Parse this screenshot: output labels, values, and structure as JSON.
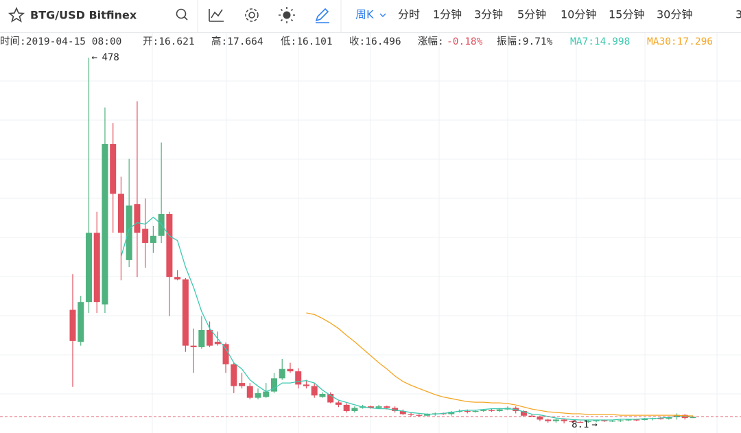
{
  "toolbar": {
    "symbol": "BTG/USD Bitfinex",
    "active_period": "周K",
    "periods": [
      "分时",
      "1分钟",
      "3分钟",
      "5分钟",
      "10分钟",
      "15分钟",
      "30分钟",
      "3"
    ]
  },
  "info": {
    "time": "时间:2019-04-15 08:00",
    "open": "开:16.621",
    "high": "高:17.664",
    "low": "低:16.101",
    "close": "收:16.496",
    "change_label": "涨幅:",
    "change": "-0.18%",
    "amplitude": "振幅:9.71%",
    "ma7": "MA7:14.998",
    "ma30": "MA30:17.296"
  },
  "chart_data": {
    "type": "candlestick",
    "up_color": "#4fb27f",
    "down_color": "#e0505f",
    "open": [
      154,
      113,
      164,
      253,
      161,
      367,
      303,
      218,
      290,
      258,
      240,
      249,
      277,
      196,
      193,
      108,
      106,
      128,
      113,
      110,
      84,
      60,
      56,
      41,
      42,
      49,
      66,
      78,
      75,
      58,
      56,
      42,
      46,
      35,
      32,
      24,
      28,
      30,
      28,
      30,
      28,
      24,
      20,
      19,
      18,
      20,
      21,
      20,
      23,
      24,
      23,
      24,
      25,
      24,
      26,
      28,
      24,
      18,
      17,
      13,
      11,
      13,
      11,
      10,
      10,
      11,
      12,
      11,
      11,
      12,
      13,
      12.5,
      14,
      14.5,
      14,
      16,
      19,
      15
    ],
    "high": [
      200,
      172,
      478,
      280,
      414,
      394,
      325,
      348,
      422,
      297,
      262,
      369,
      280,
      205,
      195,
      130,
      146,
      139,
      126,
      112,
      86,
      73,
      60,
      53,
      60,
      73,
      91,
      86,
      79,
      64,
      60,
      48,
      48,
      37,
      34,
      30,
      32,
      31,
      32,
      31,
      30,
      26,
      22,
      20,
      21,
      22,
      22,
      24,
      26,
      26,
      25,
      26,
      27,
      28,
      30,
      30,
      25,
      20,
      18,
      14,
      14,
      14,
      12,
      11,
      12,
      12.5,
      13,
      12,
      13,
      14,
      14,
      15,
      15.5,
      16,
      17,
      21,
      20,
      17
    ],
    "low": [
      55,
      108,
      150,
      150,
      150,
      253,
      192,
      209,
      196,
      208,
      227,
      240,
      146,
      192,
      100,
      73,
      104,
      106,
      108,
      73,
      47,
      53,
      39,
      39,
      41,
      47,
      64,
      73,
      53,
      53,
      41,
      41,
      34,
      29,
      22,
      22,
      27,
      27,
      27,
      26,
      22,
      19,
      17,
      17,
      17,
      18,
      19,
      18,
      22,
      21,
      22,
      23,
      23,
      23,
      25,
      21,
      16,
      16,
      11,
      9,
      9,
      8.1,
      9,
      9,
      9,
      9.5,
      10,
      10,
      10,
      11,
      11,
      12,
      12,
      13,
      13,
      13,
      13,
      15
    ],
    "close": [
      114,
      164,
      253,
      164,
      367,
      303,
      253,
      288,
      253,
      240,
      249,
      277,
      196,
      193,
      108,
      106,
      128,
      108,
      110,
      84,
      56,
      56,
      41,
      47,
      49,
      66,
      78,
      75,
      58,
      56,
      44,
      46,
      35,
      32,
      24,
      28,
      30,
      28,
      30,
      28,
      24,
      20,
      19,
      18,
      20,
      21,
      20,
      23,
      24,
      23,
      24,
      25,
      24,
      26,
      28,
      24,
      18,
      17,
      13,
      11,
      13,
      11,
      10,
      9.5,
      11,
      12,
      11,
      11.5,
      12,
      13,
      12.5,
      14,
      14.5,
      14,
      16,
      19,
      15,
      16.5
    ],
    "series": [
      {
        "color": "#3cc9b0",
        "values": [
          null,
          null,
          null,
          null,
          null,
          null,
          222,
          258,
          266,
          264,
          273,
          264,
          249,
          243,
          209,
          183,
          152,
          130,
          117,
          104,
          86,
          78,
          64,
          56,
          49,
          53,
          60,
          60,
          62,
          63,
          60,
          51,
          44,
          38,
          35,
          32,
          29,
          28,
          27,
          27,
          25,
          24,
          22,
          21,
          20,
          20,
          21,
          22,
          24,
          25,
          25,
          26,
          27,
          27,
          27,
          26,
          23,
          20,
          19,
          17,
          15,
          14,
          13,
          12.5,
          12.5,
          12.5,
          12.5,
          12.5,
          13.4,
          13.4,
          13.4,
          14.3,
          14.3,
          15.1,
          16,
          16.9,
          16.9,
          17.8
        ]
      },
      {
        "color": "#f5a623",
        "values": [
          null,
          null,
          null,
          null,
          null,
          null,
          null,
          null,
          null,
          null,
          null,
          null,
          null,
          null,
          null,
          null,
          null,
          null,
          null,
          null,
          null,
          null,
          null,
          null,
          null,
          null,
          null,
          null,
          null,
          150,
          148,
          143,
          137,
          130,
          121,
          113,
          104,
          95,
          86,
          78,
          69,
          62,
          57,
          53,
          49,
          45,
          42,
          40,
          38,
          36,
          35.3,
          35.3,
          34.5,
          34.5,
          33.6,
          31.8,
          29.2,
          26.5,
          24.8,
          23,
          22.2,
          21.3,
          20.4,
          20.4,
          19.5,
          19.5,
          19.5,
          19.5,
          18.6,
          18.6,
          18.6,
          18.6,
          18.6,
          18.6,
          18.6,
          18.6,
          17.8,
          17.8
        ]
      }
    ]
  }
}
